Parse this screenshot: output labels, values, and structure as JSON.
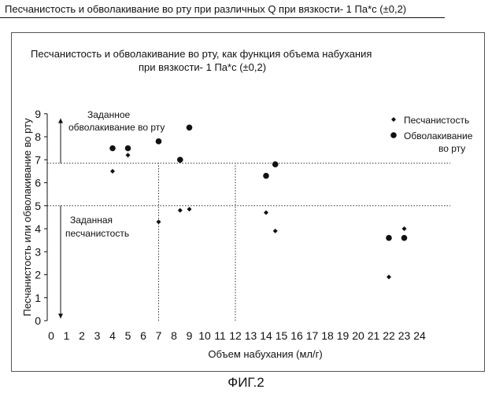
{
  "heading": "Песчанистость и обволакивание во рту при различных Q при вязкости- 1 Па*с (±0,2)",
  "caption": "ФИГ.2",
  "chart_data": {
    "type": "scatter",
    "title": "Песчанистость и обволакивание во рту, как функция объема набухания",
    "subtitle": "при вязкости- 1 Па*с (±0,2)",
    "xlabel": "Объем набухания (мл/г)",
    "ylabel": "Песчанистость или обволакивание во рту",
    "xlim": [
      0,
      24
    ],
    "ylim": [
      0,
      9
    ],
    "x_ticks": [
      "0",
      "1",
      "2",
      "3",
      "4",
      "5",
      "6",
      "7",
      "8",
      "9",
      "10",
      "11",
      "12",
      "13",
      "14",
      "15",
      "16",
      "17",
      "18",
      "19",
      "20",
      "21",
      "22",
      "23",
      "24"
    ],
    "y_ticks": [
      "0",
      "1",
      "2",
      "3",
      "4",
      "5",
      "6",
      "7",
      "8",
      "9"
    ],
    "grid": false,
    "legend_position": "top-right",
    "series": [
      {
        "name": "Песчанистость",
        "marker": "diamond",
        "points": [
          [
            4.0,
            6.5
          ],
          [
            5.0,
            7.2
          ],
          [
            7.0,
            4.3
          ],
          [
            8.4,
            4.8
          ],
          [
            9.0,
            4.85
          ],
          [
            14.0,
            4.7
          ],
          [
            14.6,
            3.9
          ],
          [
            22.0,
            1.9
          ],
          [
            23.0,
            4.0
          ]
        ]
      },
      {
        "name": "Обволакивание во рту",
        "marker": "circle",
        "points": [
          [
            4.0,
            7.5
          ],
          [
            5.0,
            7.5
          ],
          [
            7.0,
            7.8
          ],
          [
            8.4,
            7.0
          ],
          [
            9.0,
            8.4
          ],
          [
            14.0,
            6.3
          ],
          [
            14.6,
            6.8
          ],
          [
            22.0,
            3.6
          ],
          [
            23.0,
            3.6
          ]
        ]
      }
    ],
    "reference_lines": [
      {
        "orientation": "horizontal",
        "value": 6.85,
        "style": "dotted"
      },
      {
        "orientation": "horizontal",
        "value": 5.0,
        "style": "dotted"
      },
      {
        "orientation": "vertical",
        "value": 7.0,
        "from": 0,
        "to": 6.85,
        "style": "dotted"
      },
      {
        "orientation": "vertical",
        "value": 12.0,
        "from": 0,
        "to": 6.85,
        "style": "dotted"
      }
    ],
    "annotations": {
      "target_coating_line1": "Заданное",
      "target_coating_line2": "обволакивание во рту",
      "target_grit_line1": "Заданная",
      "target_grit_line2": "песчанистость"
    },
    "legend_labels": {
      "grit": "Песчанистость",
      "coating_line1": "Обволакивание",
      "coating_line2": "во рту"
    }
  }
}
